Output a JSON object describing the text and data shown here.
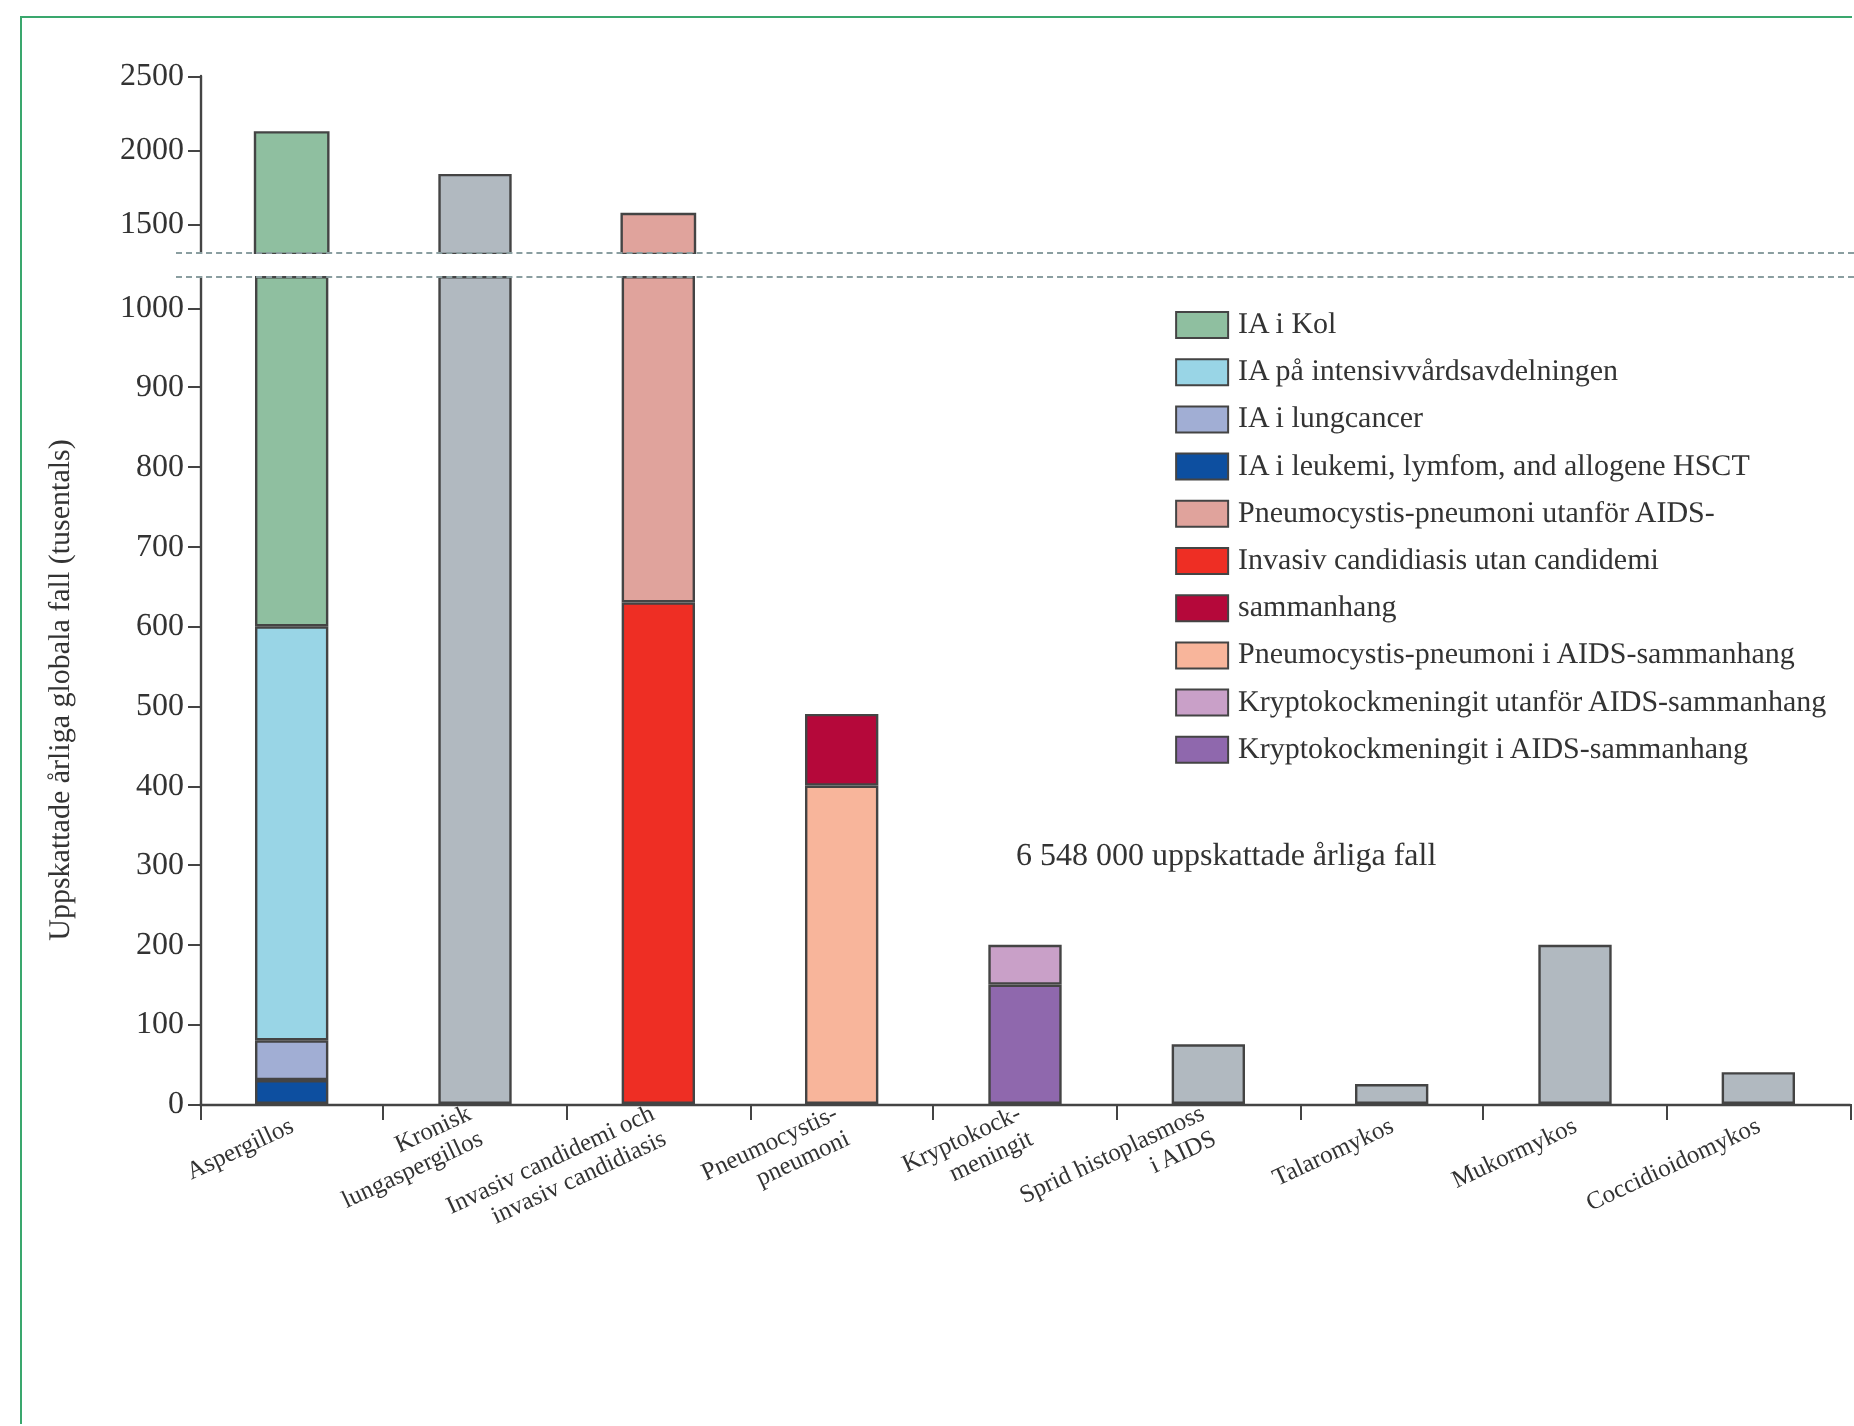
{
  "chart_data": [
    {
      "type": "bar",
      "tick_labels": "y",
      "categories": [
        null,
        null,
        null,
        null,
        null,
        null,
        null,
        null,
        null
      ],
      "ylim": [
        1300,
        2500
      ],
      "yticks": [
        1500,
        2000,
        2500
      ],
      "series": [
        {
          "color": "#8fbfa0",
          "values": [
            1520,
            null,
            null,
            null,
            null,
            null,
            null,
            null,
            null
          ],
          "base": [
            600,
            null,
            null,
            null,
            null,
            null,
            null,
            null,
            null
          ]
        },
        {
          "color": "#e0a39c",
          "values": [
            null,
            null,
            940,
            null,
            null,
            null,
            null,
            null,
            null
          ],
          "base": [
            null,
            null,
            630,
            null,
            null,
            null,
            null,
            null,
            null
          ]
        },
        {
          "color": "#b1b9c0",
          "values": [
            null,
            1840,
            null,
            null,
            null,
            null,
            null,
            null,
            null
          ]
        }
      ]
    },
    {
      "type": "bar",
      "stacked": true,
      "ylabel": "Uppskattade årliga globala fall (tusentals)",
      "legend": "top right",
      "annotations": [
        "6 548 000 uppskattade årliga fall"
      ],
      "categories": [
        "Aspergillos",
        "Kronisk lungaspergillos",
        "Invasiv candidemi och invasiv candidiasis",
        "Pneumocystis-pneumoni",
        "Kryptokock-meningit",
        "Sprid histoplasmoss i AIDS",
        "Talaromykos",
        "Mukormykos",
        "Coccidioidomykos"
      ],
      "ylim": [
        0,
        1040
      ],
      "yticks": [
        0,
        100,
        200,
        300,
        400,
        500,
        600,
        700,
        800,
        900,
        1000
      ],
      "series": [
        {
          "name": "Kryptokockmeningit i AIDS-sammanhang",
          "color": "#8f68ad",
          "values": [
            null,
            null,
            null,
            null,
            150,
            null,
            null,
            null,
            null
          ]
        },
        {
          "name": "Kryptokockmeningit utanför AIDS-sammanhang",
          "color": "#c9a0c8",
          "values": [
            null,
            null,
            null,
            null,
            50,
            null,
            null,
            null,
            null
          ]
        },
        {
          "name": "Pneumocystis-pneumoni i AIDS-sammanhang",
          "color": "#f8b59b",
          "values": [
            null,
            null,
            null,
            400,
            null,
            null,
            null,
            null,
            null
          ]
        },
        {
          "name": "sammanhang",
          "color": "#b5083a",
          "values": [
            null,
            null,
            null,
            90,
            null,
            null,
            null,
            null,
            null
          ]
        },
        {
          "name": "Invasiv candidiasis utan candidemi",
          "color": "#ee2e24",
          "values": [
            null,
            null,
            630,
            null,
            null,
            null,
            null,
            null,
            null
          ]
        },
        {
          "name": "Pneumocystis-pneumoni utanför AIDS-",
          "color": "#e0a39c",
          "values": [
            null,
            null,
            410,
            null,
            null,
            null,
            null,
            null,
            null
          ]
        },
        {
          "name": "IA i leukemi, lymfom, and allogene HSCT",
          "color": "#0d4fa0",
          "values": [
            30,
            null,
            null,
            null,
            null,
            null,
            null,
            null,
            null
          ]
        },
        {
          "name": "IA i lungcancer",
          "color": "#a1aed4",
          "values": [
            50,
            null,
            null,
            null,
            null,
            null,
            null,
            null,
            null
          ]
        },
        {
          "name": "IA på intensivvårdsavdelningen",
          "color": "#99d5e6",
          "values": [
            520,
            null,
            null,
            null,
            null,
            null,
            null,
            null,
            null
          ]
        },
        {
          "name": "IA i Kol",
          "color": "#8fbfa0",
          "values": [
            440,
            null,
            null,
            null,
            null,
            null,
            null,
            null,
            null
          ]
        },
        {
          "color": "#b1b9c0",
          "values": [
            null,
            1040,
            null,
            null,
            null,
            75,
            25,
            200,
            40
          ]
        }
      ]
    }
  ]
}
